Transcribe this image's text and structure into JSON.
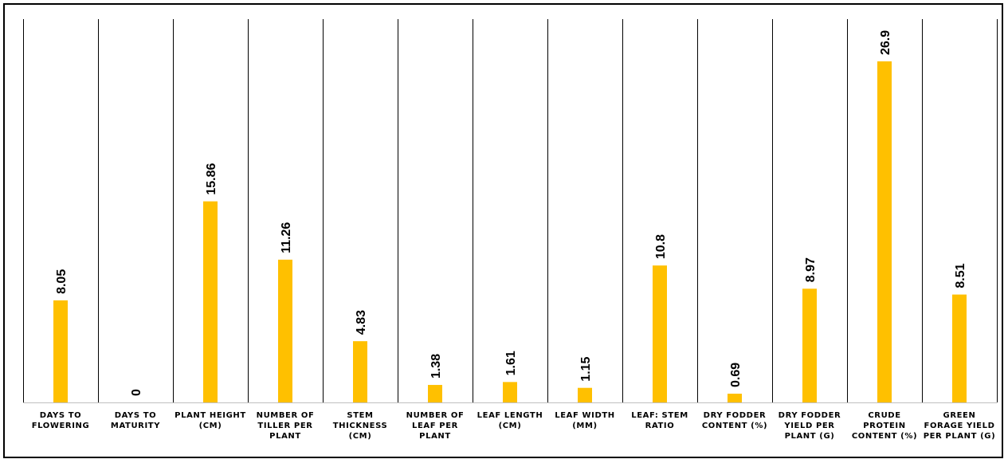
{
  "chart_data": {
    "type": "bar",
    "categories": [
      "DAYS TO FLOWERING",
      "DAYS TO MATURITY",
      "PLANT HEIGHT (CM)",
      "NUMBER OF TILLER PER PLANT",
      "STEM THICKNESS (CM)",
      "NUMBER OF LEAF PER PLANT",
      "LEAF LENGTH (CM)",
      "LEAF WIDTH (MM)",
      "LEAF: STEM RATIO",
      "DRY FODDER CONTENT (%)",
      "DRY FODDER YIELD PER PLANT (G)",
      "CRUDE PROTEIN CONTENT (%)",
      "GREEN FORAGE YIELD PER PLANT (G)"
    ],
    "values": [
      8.05,
      0,
      15.86,
      11.26,
      4.83,
      1.38,
      1.61,
      1.15,
      10.8,
      0.69,
      8.97,
      26.9,
      8.51
    ],
    "value_labels": [
      "8.05",
      "0",
      "15.86",
      "11.26",
      "4.83",
      "1.38",
      "1.61",
      "1.15",
      "10.8",
      "0.69",
      "8.97",
      "26.9",
      "8.51"
    ],
    "bar_color": "#FFC000",
    "grid": "vertical category separators",
    "legend": "none",
    "ylim": [
      0,
      27
    ]
  }
}
